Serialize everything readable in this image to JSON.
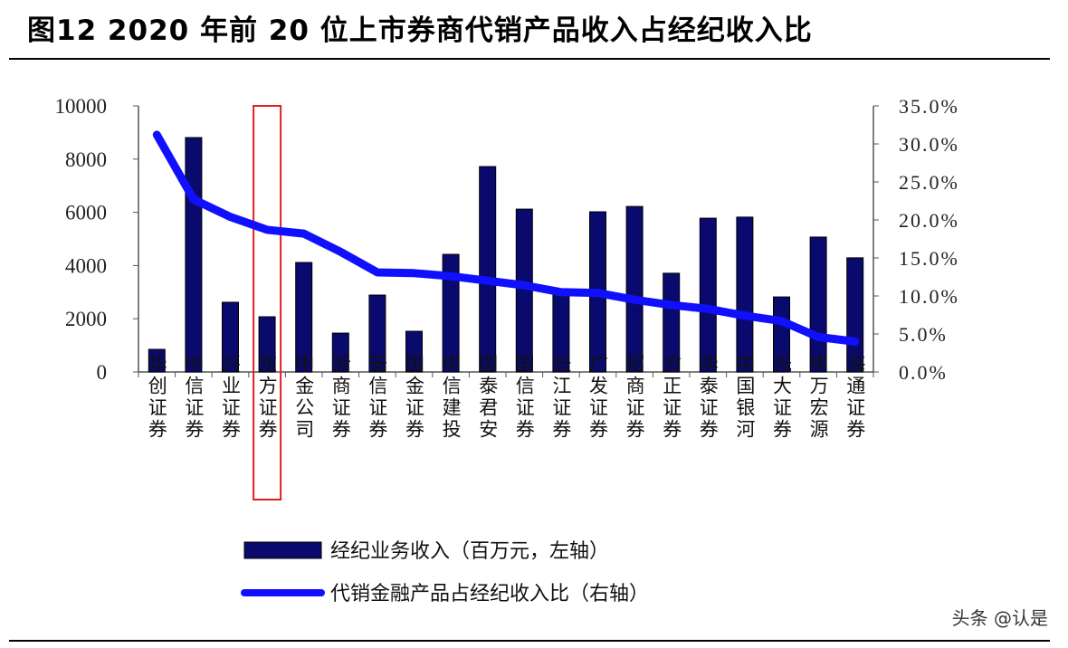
{
  "chart_data": {
    "type": "bar+line",
    "title": "图12 2020 年前 20 位上市券商代销产品收入占经纪收入比",
    "categories": [
      "华创证券",
      "中信证券",
      "兴业证券",
      "东方证券",
      "中金公司",
      "浙商证券",
      "安信证券",
      "国金证券",
      "中信建投",
      "国泰君安",
      "国信证券",
      "长江证券",
      "广发证券",
      "招商证券",
      "方正证券",
      "华泰证券",
      "中国银河",
      "光大证券",
      "申万宏源",
      "海通证券"
    ],
    "highlighted_category": "东方证券",
    "series": [
      {
        "name": "经纪业务收入（百万元，左轴）",
        "type": "bar",
        "axis": "left",
        "color": "#0a0a6e",
        "values": [
          850,
          8810,
          2620,
          2075,
          4115,
          1460,
          2890,
          1530,
          4420,
          7720,
          6120,
          3000,
          6020,
          6220,
          3710,
          5780,
          5820,
          2820,
          5070,
          4290
        ]
      },
      {
        "name": "代销金融产品占经纪收入比（右轴）",
        "type": "line",
        "axis": "right",
        "color": "#1010ff",
        "values": [
          31.2,
          22.7,
          20.4,
          18.7,
          18.2,
          15.8,
          13.1,
          13.0,
          12.6,
          12.0,
          11.4,
          10.5,
          10.4,
          9.5,
          8.8,
          8.3,
          7.4,
          6.7,
          4.6,
          4.0
        ]
      }
    ],
    "y_left": {
      "ylim": [
        0,
        10000
      ],
      "ticks": [
        "0",
        "2000",
        "4000",
        "6000",
        "8000",
        "10000"
      ]
    },
    "y_right": {
      "ylim": [
        0,
        35
      ],
      "ticks": [
        "0.0%",
        "5.0%",
        "10.0%",
        "15.0%",
        "20.0%",
        "25.0%",
        "30.0%",
        "35.0%"
      ]
    },
    "grid": false,
    "legend_placement": "bottom"
  },
  "watermark": "头条 @认是",
  "colors": {
    "highlight": "#e02020"
  }
}
